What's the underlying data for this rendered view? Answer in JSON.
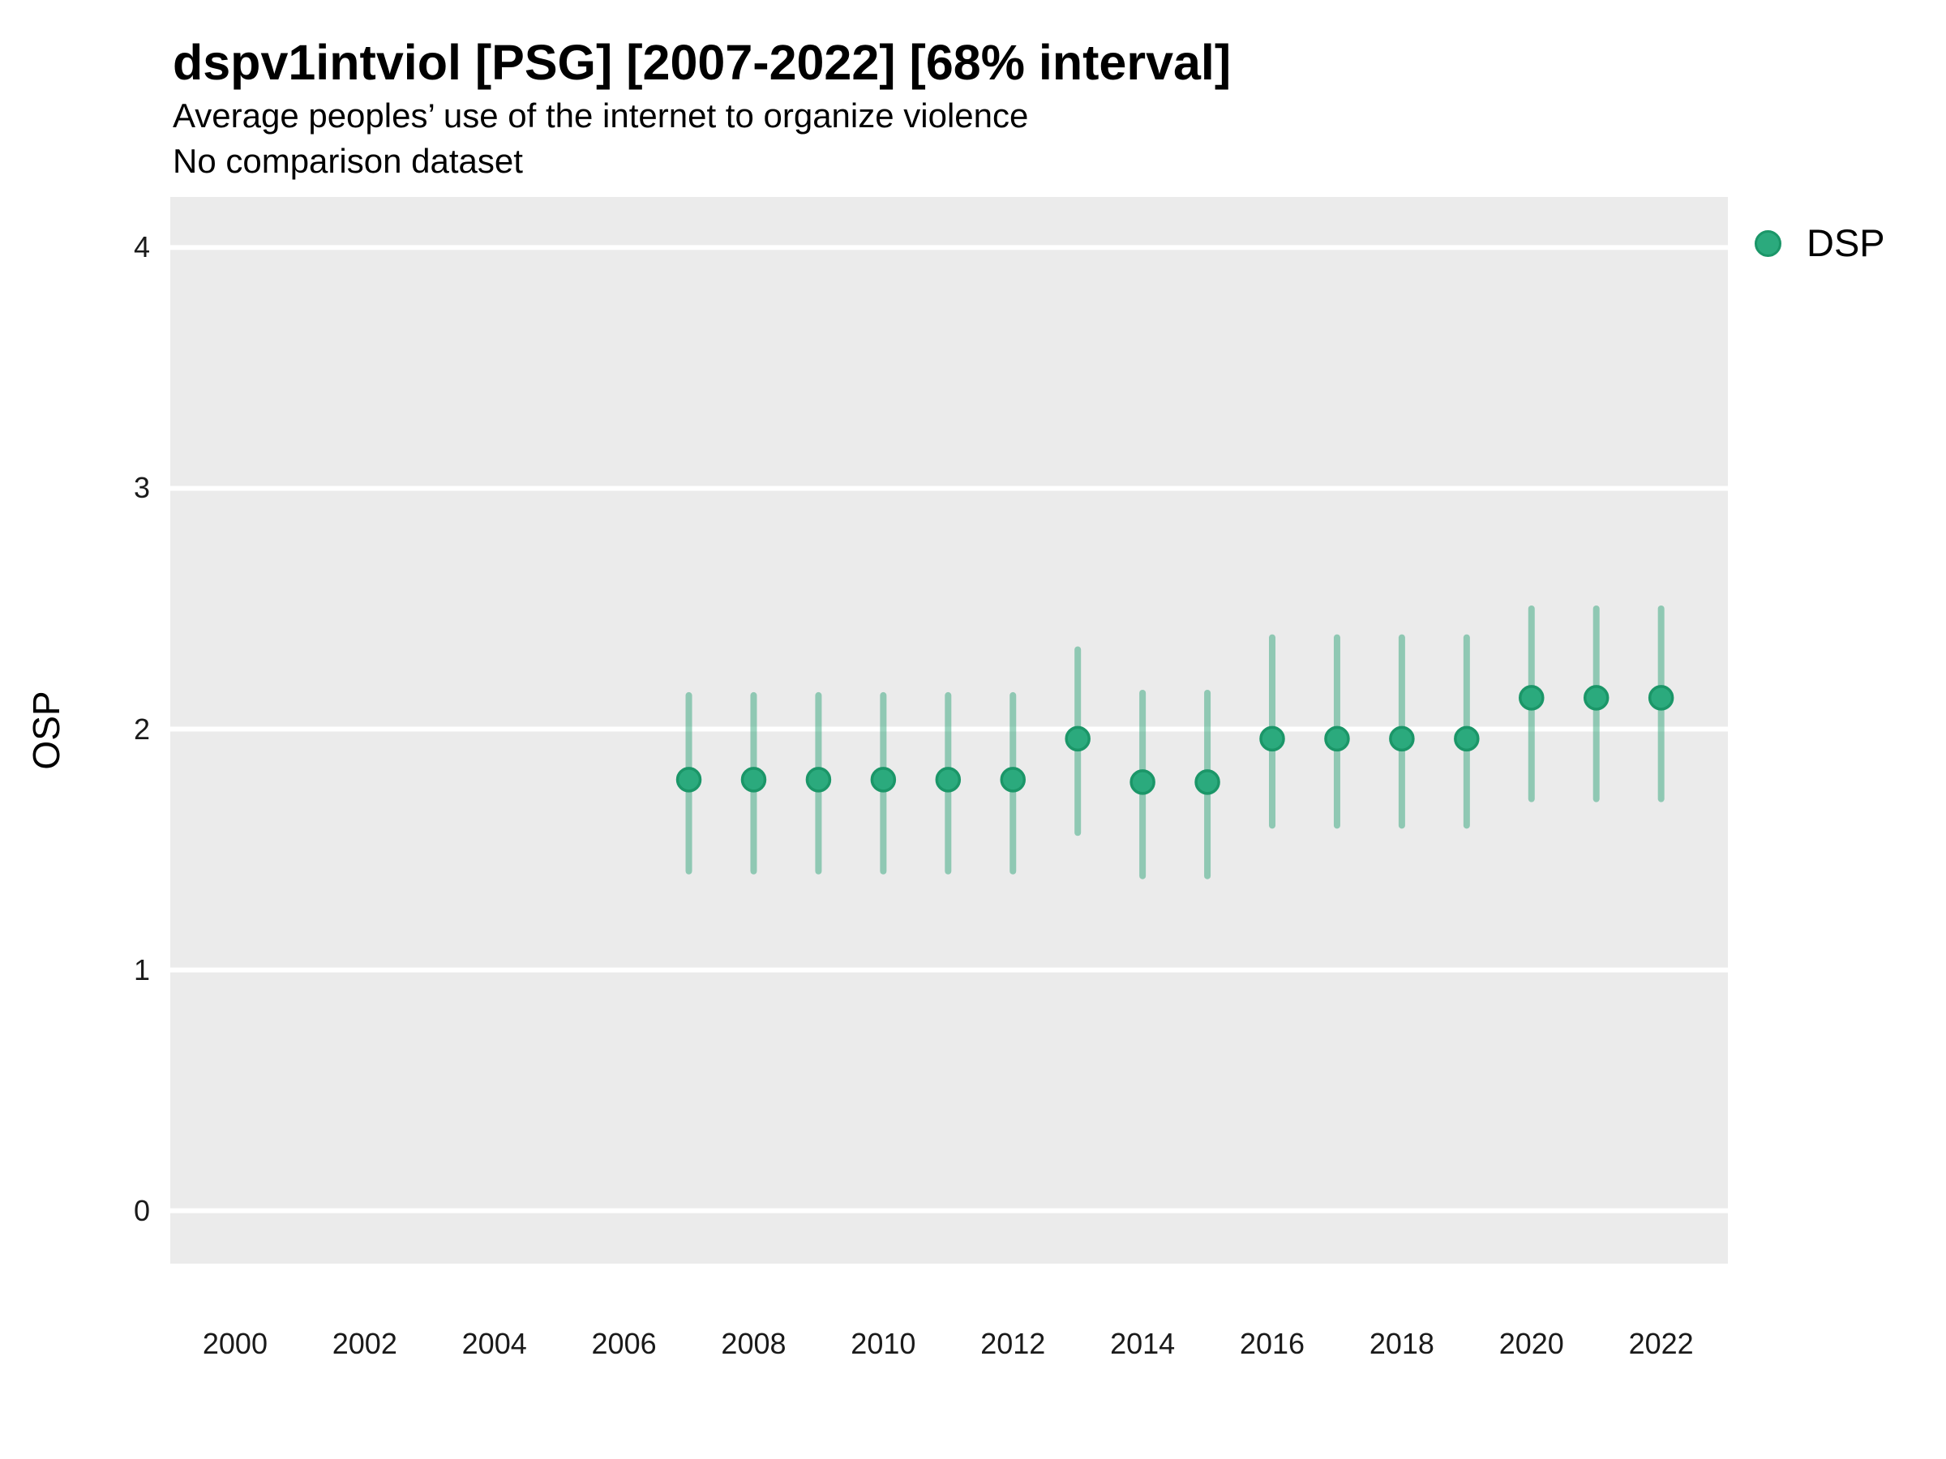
{
  "header": {
    "title": "dspv1intviol [PSG] [2007-2022] [68% interval]",
    "subtitle": "Average peoples’ use of the internet to organize violence",
    "note": "No comparison dataset"
  },
  "y_axis": {
    "title": "OSP"
  },
  "legend": {
    "position": "right",
    "items": [
      {
        "label": "DSP",
        "marker": "circle-icon"
      }
    ]
  },
  "colors": {
    "point_fill": "#2BAA7D",
    "point_border": "#1B9668",
    "interval_bar": "rgba(31,158,110,0.45)",
    "panel_background": "#EBEBEB",
    "gridline": "#FFFFFF",
    "tick_text": "#1a1a1a",
    "text": "#000000"
  },
  "chart_data": {
    "type": "scatter",
    "variant": "pointrange",
    "title": "dspv1intviol [PSG] [2007-2022] [68% interval]",
    "subtitle": "Average peoples’ use of the internet to organize violence",
    "note": "No comparison dataset",
    "xlabel": "",
    "ylabel": "OSP",
    "xlim": [
      1999,
      2023.03
    ],
    "ylim": [
      -0.22,
      4.21
    ],
    "x_ticks": [
      2000,
      2002,
      2004,
      2006,
      2008,
      2010,
      2012,
      2014,
      2016,
      2018,
      2020,
      2022
    ],
    "y_ticks": [
      0,
      1,
      2,
      3,
      4
    ],
    "grid": "horizontal-major-only",
    "legend_position": "right",
    "interval_level": "68%",
    "series": [
      {
        "name": "DSP",
        "x": [
          2007,
          2008,
          2009,
          2010,
          2011,
          2012,
          2013,
          2014,
          2015,
          2016,
          2017,
          2018,
          2019,
          2020,
          2021,
          2022
        ],
        "y": [
          1.79,
          1.79,
          1.79,
          1.79,
          1.79,
          1.79,
          1.96,
          1.78,
          1.78,
          1.96,
          1.96,
          1.96,
          1.96,
          2.13,
          2.13,
          2.13
        ],
        "interval_low": [
          1.41,
          1.41,
          1.41,
          1.41,
          1.41,
          1.41,
          1.57,
          1.39,
          1.39,
          1.6,
          1.6,
          1.6,
          1.6,
          1.71,
          1.71,
          1.71
        ],
        "interval_high": [
          2.14,
          2.14,
          2.14,
          2.14,
          2.14,
          2.14,
          2.33,
          2.15,
          2.15,
          2.38,
          2.38,
          2.38,
          2.38,
          2.5,
          2.5,
          2.5
        ]
      }
    ]
  }
}
